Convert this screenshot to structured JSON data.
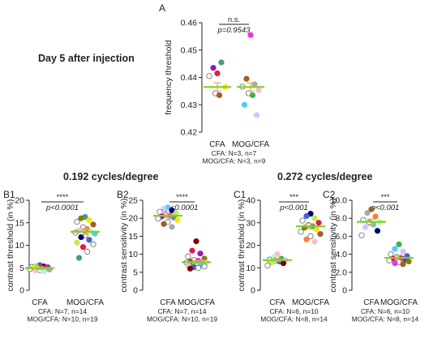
{
  "figure": {
    "header_left": "Day 5 after injection",
    "header_b": "0.192 cycles/degree",
    "header_c": "0.272 cycles/degree"
  },
  "colors": {
    "mean_line": "#7ED321",
    "error_bar": "#F0A05A",
    "open_marker_edge": "#666666",
    "palette": [
      "#E6194B",
      "#3CB44B",
      "#FFE119",
      "#4363D8",
      "#F58231",
      "#911EB4",
      "#42D4F4",
      "#F032E6",
      "#BFEF45",
      "#FABED4",
      "#469990",
      "#DCBEFF",
      "#9A6324",
      "#800000",
      "#AAFFC3",
      "#808000",
      "#000075",
      "#A9A9A9"
    ]
  },
  "chart_data": [
    {
      "panel": "A",
      "type": "scatter",
      "ylabel": "frequency threshold",
      "categories": [
        "CFA",
        "MOG/CFA"
      ],
      "ylim": [
        0.42,
        0.46
      ],
      "yticks": [
        "0.42",
        "0.43",
        "0.44",
        "0.45",
        "0.46"
      ],
      "significance": "n.s.",
      "p_value": "p=0.9543",
      "footnote": [
        "CFA: N=3, n=7",
        "MOG/CFA: N=3, n=9"
      ],
      "mean": [
        0.4365,
        0.4365
      ],
      "sem": [
        0.0015,
        0.0015
      ],
      "series": [
        {
          "values": [
            0.4415,
            0.4435,
            0.4455,
            0.4405,
            0.4365,
            0.4342,
            0.4335
          ]
        },
        {
          "values": [
            0.4555,
            0.4395,
            0.4375,
            0.4366,
            0.4354,
            0.4342,
            0.4335,
            0.43,
            0.4262
          ]
        }
      ]
    },
    {
      "panel": "B1",
      "type": "scatter",
      "ylabel": "contrast threshold (in %)",
      "categories": [
        "CFA",
        "MOG/CFA"
      ],
      "ylim": [
        0,
        20
      ],
      "yticks": [
        "0",
        "5",
        "10",
        "15",
        "20"
      ],
      "significance": "****",
      "p_value": "p<0.0001",
      "footnote": [
        "CFA: N=7, n=14",
        "MOG/CFA: N=10, n=19"
      ],
      "mean": [
        4.9,
        13.0
      ],
      "sem": [
        0.3,
        0.6
      ],
      "series": [
        {
          "values": [
            5.6,
            5.4,
            5.3,
            5.2,
            5.1,
            5.0,
            4.9,
            4.9,
            4.8,
            4.7,
            4.6,
            4.5,
            4.4,
            4.2
          ]
        },
        {
          "values": [
            16.3,
            16.0,
            15.6,
            15.2,
            14.6,
            14.0,
            13.6,
            13.3,
            13.0,
            12.8,
            12.6,
            12.2,
            11.8,
            11.2,
            10.6,
            10.2,
            9.6,
            8.6,
            7.2
          ]
        }
      ]
    },
    {
      "panel": "B2",
      "type": "scatter",
      "ylabel": "contrast sensitivity (in %)",
      "categories": [
        "CFA",
        "MOG/CFA"
      ],
      "ylim": [
        0,
        25
      ],
      "yticks": [
        "0",
        "5",
        "10",
        "15",
        "20",
        "25"
      ],
      "significance": "****",
      "p_value": "p<0.0001",
      "footnote": [
        "CFA: N=7, n=14",
        "MOG/CFA: N=10, n=19"
      ],
      "mean": [
        20.7,
        7.8
      ],
      "sem": [
        0.5,
        0.4
      ],
      "series": [
        {
          "values": [
            23.0,
            22.6,
            22.2,
            21.8,
            21.4,
            21.0,
            20.7,
            20.5,
            20.2,
            19.9,
            19.5,
            19.0,
            18.4,
            17.6
          ]
        },
        {
          "values": [
            13.6,
            11.0,
            10.2,
            9.4,
            8.8,
            8.4,
            8.2,
            8.0,
            7.8,
            7.7,
            7.6,
            7.4,
            7.2,
            7.0,
            6.8,
            6.6,
            6.4,
            6.2,
            6.0
          ]
        }
      ]
    },
    {
      "panel": "C1",
      "type": "scatter",
      "ylabel": "contrast threshold (in %)",
      "categories": [
        "CFA",
        "MOG/CFA"
      ],
      "ylim": [
        0,
        40
      ],
      "yticks": [
        "0",
        "10",
        "20",
        "30",
        "40"
      ],
      "significance": "***",
      "p_value": "p<0.001",
      "footnote": [
        "CFA: N=6, n=10",
        "MOG/CFA: N=8, n=14"
      ],
      "mean": [
        13.4,
        28.4
      ],
      "sem": [
        0.6,
        1.2
      ],
      "series": [
        {
          "values": [
            16.0,
            14.6,
            14.0,
            13.6,
            13.4,
            13.2,
            12.8,
            12.4,
            12.0,
            11.0
          ]
        },
        {
          "values": [
            34.0,
            33.0,
            32.0,
            31.0,
            30.0,
            29.0,
            28.4,
            27.8,
            27.0,
            26.0,
            25.0,
            24.0,
            22.6,
            21.6
          ]
        }
      ]
    },
    {
      "panel": "C2",
      "type": "scatter",
      "ylabel": "contrast sensitivity (in %)",
      "categories": [
        "CFA",
        "MOG/CFA"
      ],
      "ylim": [
        0,
        10
      ],
      "yticks": [
        "0",
        "2.0",
        "4.0",
        "6.0",
        "8.0",
        "10.0"
      ],
      "significance": "***",
      "p_value": "p<0.001",
      "footnote": [
        "CFA: N=6, n=10",
        "MOG/CFA: N=8, n=14"
      ],
      "mean": [
        7.6,
        3.6
      ],
      "sem": [
        0.3,
        0.2
      ],
      "series": [
        {
          "values": [
            9.0,
            8.6,
            8.2,
            7.8,
            7.6,
            7.5,
            7.3,
            7.0,
            6.6,
            6.1
          ]
        },
        {
          "values": [
            5.1,
            4.6,
            4.3,
            4.0,
            3.8,
            3.7,
            3.6,
            3.5,
            3.4,
            3.3,
            3.2,
            3.1,
            3.0,
            2.9
          ]
        }
      ]
    }
  ]
}
